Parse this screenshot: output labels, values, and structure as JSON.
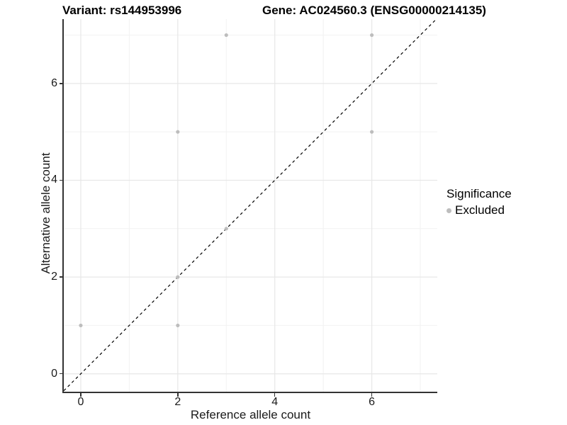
{
  "chart_data": {
    "type": "scatter",
    "title_left": "Variant: rs144953996",
    "title_right": "Gene: AC024560.3 (ENSG00000214135)",
    "xlabel": "Reference allele count",
    "ylabel": "Alternative allele count",
    "xlim": [
      -0.35,
      7.35
    ],
    "ylim": [
      -0.37,
      7.33
    ],
    "x_major_ticks": [
      0,
      2,
      4,
      6
    ],
    "y_major_ticks": [
      0,
      2,
      4,
      6
    ],
    "x_minor_gridlines": [
      1,
      3,
      5,
      7
    ],
    "y_minor_gridlines": [
      1,
      3,
      5,
      7
    ],
    "grid": "major+minor",
    "legend_position": "right",
    "identity_line": {
      "style": "dashed",
      "slope": 1,
      "intercept": 0
    },
    "series": [
      {
        "name": "Excluded",
        "color": "#bdbdbd",
        "points": [
          [
            0,
            1
          ],
          [
            2,
            1
          ],
          [
            2,
            2
          ],
          [
            2,
            5
          ],
          [
            3,
            3
          ],
          [
            3,
            7
          ],
          [
            6,
            5
          ],
          [
            6,
            7
          ]
        ]
      }
    ]
  },
  "legend": {
    "title": "Significance",
    "items": [
      {
        "label": "Excluded",
        "color": "#bdbdbd"
      }
    ]
  },
  "colors": {
    "axis_line": "#333333",
    "tick_text": "#1a1a1a",
    "grid_major": "#e7e7e7",
    "grid_minor": "#f2f2f2",
    "dashed_line": "#000000",
    "background": "#ffffff"
  }
}
